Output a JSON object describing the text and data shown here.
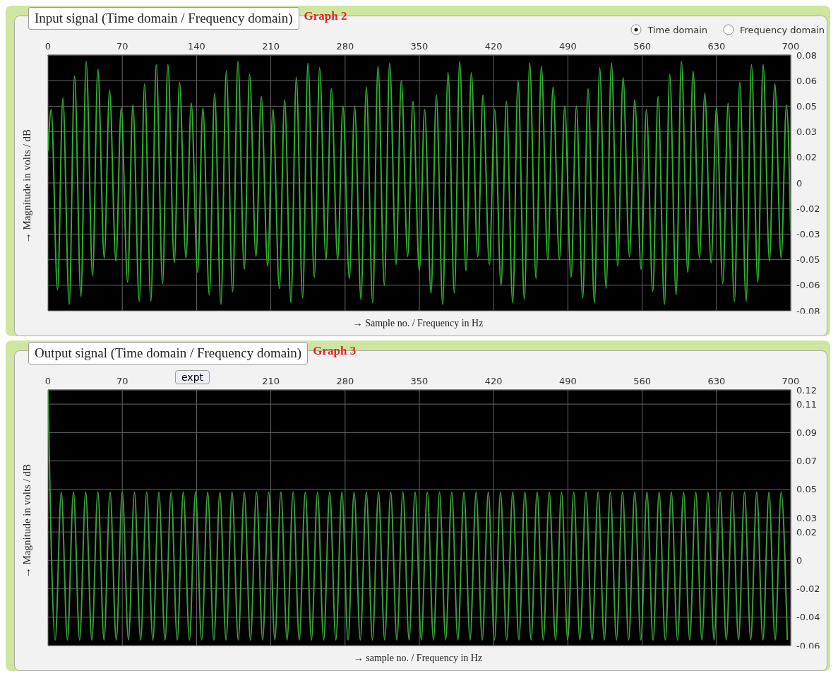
{
  "chart_data": [
    {
      "type": "line",
      "title": "Input signal (Time domain / Frequency domain)",
      "xlabel": "→ Sample no. / Frequency in Hz",
      "ylabel": "→ Magnitude in volts / dB",
      "annotations": [
        "Graph 2",
        "Time domain",
        "Frequency domain"
      ],
      "xlim": [
        0,
        700
      ],
      "xticks": [
        0,
        70,
        140,
        210,
        280,
        350,
        420,
        490,
        560,
        630,
        700
      ],
      "ylim": [
        -0.08,
        0.08
      ],
      "yticks": [
        {
          "value": -0.08,
          "label": "-0.08"
        },
        {
          "value": -0.064,
          "label": "-0.06"
        },
        {
          "value": -0.048,
          "label": "-0.05"
        },
        {
          "value": -0.032,
          "label": "-0.03"
        },
        {
          "value": -0.016,
          "label": "-0.02"
        },
        {
          "value": 0,
          "label": "0"
        },
        {
          "value": 0.016,
          "label": "0.02"
        },
        {
          "value": 0.032,
          "label": "0.03"
        },
        {
          "value": 0.048,
          "label": "0.05"
        },
        {
          "value": 0.064,
          "label": "0.06"
        },
        {
          "value": 0.08,
          "label": "0.08"
        }
      ],
      "grid": true,
      "line_style": "solid",
      "marker": "none",
      "series": [
        {
          "color": "#2fae2f",
          "x": [
            0,
            3,
            9,
            14,
            20,
            25,
            31,
            36,
            42,
            47,
            53,
            58,
            64,
            69,
            75,
            80,
            86,
            91,
            97,
            102,
            108,
            113,
            119,
            124,
            130,
            135,
            141,
            146,
            152,
            157,
            163,
            168,
            174,
            179,
            185,
            190,
            196,
            201,
            207,
            212,
            218,
            223,
            229,
            234,
            240,
            245,
            251,
            256,
            262,
            267,
            273,
            278,
            284,
            289,
            295,
            300,
            306,
            311,
            317,
            322,
            328,
            333,
            339,
            344,
            350,
            355,
            361,
            366,
            372,
            377,
            383,
            388,
            394,
            399,
            405,
            410,
            416,
            421,
            427,
            432,
            438,
            443,
            449,
            454,
            460,
            465,
            471,
            476,
            482,
            487,
            493,
            498,
            504,
            509,
            515,
            520,
            526,
            531,
            537,
            542,
            548,
            553,
            559,
            564,
            570,
            575,
            581,
            586,
            592,
            597,
            603,
            608,
            614,
            619,
            625,
            630,
            636,
            641,
            647,
            652,
            658,
            663,
            669,
            674,
            680,
            685,
            691,
            696,
            700
          ],
          "values": [
            0.02,
            0.046,
            -0.067,
            0.053,
            -0.076,
            0.067,
            -0.071,
            0.076,
            -0.058,
            0.071,
            -0.047,
            0.058,
            -0.049,
            0.047,
            -0.062,
            0.049,
            -0.074,
            0.062,
            -0.074,
            0.074,
            -0.063,
            0.074,
            -0.05,
            0.063,
            -0.047,
            0.05,
            -0.056,
            0.047,
            -0.07,
            0.056,
            -0.076,
            0.07,
            -0.068,
            0.076,
            -0.054,
            0.068,
            -0.046,
            0.054,
            -0.052,
            0.046,
            -0.066,
            0.052,
            -0.075,
            0.066,
            -0.072,
            0.075,
            -0.059,
            0.072,
            -0.048,
            0.059,
            -0.048,
            0.048,
            -0.06,
            0.048,
            -0.073,
            0.06,
            -0.075,
            0.073,
            -0.064,
            0.075,
            -0.051,
            0.064,
            -0.046,
            0.051,
            -0.055,
            0.046,
            -0.069,
            0.055,
            -0.076,
            0.069,
            -0.069,
            0.076,
            -0.055,
            0.069,
            -0.046,
            0.055,
            -0.051,
            0.046,
            -0.064,
            0.051,
            -0.075,
            0.064,
            -0.073,
            0.075,
            -0.06,
            0.073,
            -0.048,
            0.06,
            -0.048,
            0.048,
            -0.059,
            0.048,
            -0.072,
            0.059,
            -0.075,
            0.072,
            -0.066,
            0.075,
            -0.052,
            0.066,
            -0.046,
            0.052,
            -0.054,
            0.046,
            -0.068,
            0.054,
            -0.076,
            0.068,
            -0.07,
            0.076,
            -0.056,
            0.07,
            -0.047,
            0.056,
            -0.05,
            0.047,
            -0.063,
            0.05,
            -0.074,
            0.063,
            -0.074,
            0.074,
            -0.062,
            0.074,
            -0.049,
            0.062,
            -0.047,
            0.049,
            -0.03
          ]
        }
      ]
    },
    {
      "type": "line",
      "title": "Output signal (Time domain / Frequency domain)",
      "xlabel": "→ sample no. / Frequency in Hz",
      "ylabel": "→ Magnitude in volts / dB",
      "annotations": [
        "Graph 3",
        "expt"
      ],
      "xlim": [
        0,
        700
      ],
      "xticks": [
        0,
        70,
        {
          "value": 140,
          "label": null
        },
        210,
        280,
        350,
        420,
        490,
        560,
        630,
        700
      ],
      "ylim": [
        -0.06,
        0.12
      ],
      "yticks": [
        -0.06,
        -0.04,
        -0.02,
        0,
        0.02,
        0.03,
        0.05,
        0.07,
        0.09,
        0.11,
        0.12
      ],
      "grid": true,
      "line_style": "solid",
      "marker": "none",
      "series": [
        {
          "color": "#3a9e3a",
          "x": [
            0,
            6.8,
            12.5,
            18.3,
            24,
            29.8,
            35.5,
            41.3,
            47,
            52.8,
            58.5,
            64.3,
            70,
            75.8,
            81.5,
            87.3,
            93,
            98.8,
            104.5,
            110.3,
            116,
            121.8,
            127.5,
            133.3,
            139,
            144.8,
            150.5,
            156.3,
            162,
            167.8,
            173.5,
            179.3,
            185,
            190.8,
            196.5,
            202.3,
            208,
            213.8,
            219.5,
            225.3,
            231,
            236.8,
            242.5,
            248.3,
            254,
            259.8,
            265.5,
            271.3,
            277,
            282.8,
            288.5,
            294.3,
            300,
            305.8,
            311.5,
            317.3,
            323,
            328.8,
            334.5,
            340.3,
            346,
            351.8,
            357.5,
            363.3,
            369,
            374.8,
            380.5,
            386.3,
            392,
            397.8,
            403.5,
            409.3,
            415,
            420.8,
            426.5,
            432.3,
            438,
            443.8,
            449.5,
            455.3,
            461,
            466.8,
            472.5,
            478.3,
            484,
            489.8,
            495.5,
            501.3,
            507,
            512.8,
            518.5,
            524.3,
            530,
            535.8,
            541.5,
            547.3,
            553,
            558.8,
            564.5,
            570.3,
            576,
            581.8,
            587.5,
            593.3,
            599,
            604.8,
            610.5,
            616.3,
            622,
            627.8,
            633.5,
            639.3,
            645,
            650.8,
            656.5,
            662.3,
            668,
            673.8,
            679.5,
            685.3,
            691,
            696.8
          ],
          "values": [
            0.12,
            -0.056,
            0.048,
            -0.056,
            0.048,
            -0.056,
            0.048,
            -0.056,
            0.048,
            -0.056,
            0.048,
            -0.056,
            0.048,
            -0.056,
            0.048,
            -0.056,
            0.048,
            -0.056,
            0.048,
            -0.056,
            0.048,
            -0.056,
            0.048,
            -0.056,
            0.048,
            -0.056,
            0.048,
            -0.056,
            0.048,
            -0.056,
            0.048,
            -0.056,
            0.048,
            -0.056,
            0.048,
            -0.056,
            0.048,
            -0.056,
            0.048,
            -0.056,
            0.048,
            -0.056,
            0.048,
            -0.056,
            0.048,
            -0.056,
            0.048,
            -0.056,
            0.048,
            -0.056,
            0.048,
            -0.056,
            0.048,
            -0.056,
            0.048,
            -0.056,
            0.048,
            -0.056,
            0.048,
            -0.056,
            0.048,
            -0.056,
            0.048,
            -0.056,
            0.048,
            -0.056,
            0.048,
            -0.056,
            0.048,
            -0.056,
            0.048,
            -0.056,
            0.048,
            -0.056,
            0.048,
            -0.056,
            0.048,
            -0.056,
            0.048,
            -0.056,
            0.048,
            -0.056,
            0.048,
            -0.056,
            0.048,
            -0.056,
            0.048,
            -0.056,
            0.048,
            -0.056,
            0.048,
            -0.056,
            0.048,
            -0.056,
            0.048,
            -0.056,
            0.048,
            -0.056,
            0.048,
            -0.056,
            0.048,
            -0.056,
            0.048,
            -0.056,
            0.048,
            -0.056,
            0.048,
            -0.056,
            0.048,
            -0.056,
            0.048,
            -0.056,
            0.048,
            -0.056,
            0.048,
            -0.056,
            0.048,
            -0.056,
            0.048,
            -0.056,
            0.048,
            -0.056
          ]
        }
      ]
    }
  ]
}
